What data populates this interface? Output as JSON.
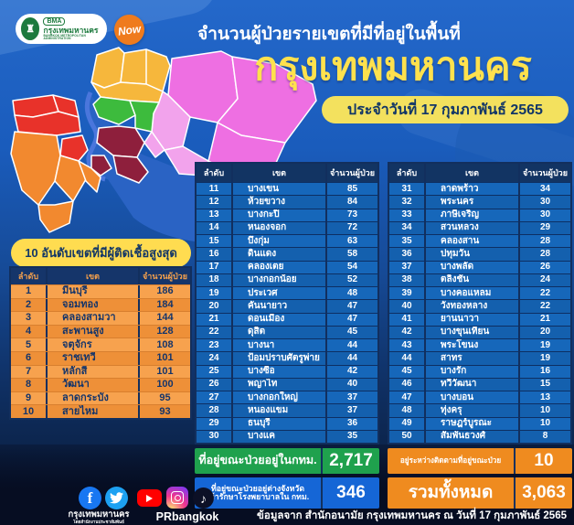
{
  "header": {
    "bma_logo": {
      "abbr": "BMA",
      "name": "กรุงเทพมหานคร",
      "sub": "BANGKOK METROPOLITAN ADMINISTRATION"
    },
    "now_logo": "Now",
    "title_line1": "จำนวนผู้ป่วยรายเขตที่มีที่อยู่ในพื้นที่",
    "title_line2": "กรุงเทพมหานคร",
    "date_badge": "ประจำวันที่ 17 กุมภาพันธ์ 2565"
  },
  "chart_data": {
    "type": "table",
    "title": "จำนวนผู้ป่วยรายเขตที่มีที่อยู่ในพื้นที่กรุงเทพมหานคร ประจำวันที่ 17 กุมภาพันธ์ 2565",
    "top10": {
      "title": "10 อันดับเขตที่มีผู้ติดเชื้อสูงสุด",
      "headers": [
        "ลำดับ",
        "เขต",
        "จำนวนผู้ป่วย"
      ],
      "rows": [
        [
          1,
          "มีนบุรี",
          "186"
        ],
        [
          2,
          "จอมทอง",
          "184"
        ],
        [
          3,
          "คลองสามวา",
          "144"
        ],
        [
          4,
          "สะพานสูง",
          "128"
        ],
        [
          5,
          "จตุจักร",
          "108"
        ],
        [
          6,
          "ราชเทวี",
          "101"
        ],
        [
          7,
          "หลักสี่",
          "101"
        ],
        [
          8,
          "วัฒนา",
          "100"
        ],
        [
          9,
          "ลาดกระบัง",
          "95"
        ],
        [
          10,
          "สายไหม",
          "93"
        ]
      ]
    },
    "ranks_11_30": {
      "headers": [
        "ลำดับ",
        "เขต",
        "จำนวนผู้ป่วย"
      ],
      "rows": [
        [
          11,
          "บางเขน",
          "85"
        ],
        [
          12,
          "ห้วยขวาง",
          "84"
        ],
        [
          13,
          "บางกะปิ",
          "73"
        ],
        [
          14,
          "หนองจอก",
          "72"
        ],
        [
          15,
          "บึงกุ่ม",
          "63"
        ],
        [
          16,
          "ดินแดง",
          "58"
        ],
        [
          17,
          "คลองเตย",
          "54"
        ],
        [
          18,
          "บางกอกน้อย",
          "52"
        ],
        [
          19,
          "ประเวศ",
          "48"
        ],
        [
          20,
          "คันนายาว",
          "47"
        ],
        [
          21,
          "ดอนเมือง",
          "47"
        ],
        [
          22,
          "ดุสิต",
          "45"
        ],
        [
          23,
          "บางนา",
          "44"
        ],
        [
          24,
          "ป้อมปราบศัตรูพ่าย",
          "44"
        ],
        [
          25,
          "บางซื่อ",
          "42"
        ],
        [
          26,
          "พญาไท",
          "40"
        ],
        [
          27,
          "บางกอกใหญ่",
          "37"
        ],
        [
          28,
          "หนองแขม",
          "37"
        ],
        [
          29,
          "ธนบุรี",
          "36"
        ],
        [
          30,
          "บางแค",
          "35"
        ]
      ]
    },
    "ranks_31_50": {
      "headers": [
        "ลำดับ",
        "เขต",
        "จำนวนผู้ป่วย"
      ],
      "rows": [
        [
          31,
          "ลาดพร้าว",
          "34"
        ],
        [
          32,
          "พระนคร",
          "30"
        ],
        [
          33,
          "ภาษีเจริญ",
          "30"
        ],
        [
          34,
          "สวนหลวง",
          "29"
        ],
        [
          35,
          "คลองสาน",
          "28"
        ],
        [
          36,
          "ปทุมวัน",
          "28"
        ],
        [
          37,
          "บางพลัด",
          "26"
        ],
        [
          38,
          "ตลิ่งชัน",
          "24"
        ],
        [
          39,
          "บางคอแหลม",
          "22"
        ],
        [
          40,
          "วังทองหลาง",
          "22"
        ],
        [
          41,
          "ยานนาวา",
          "21"
        ],
        [
          42,
          "บางขุนเทียน",
          "20"
        ],
        [
          43,
          "พระโขนง",
          "19"
        ],
        [
          44,
          "สาทร",
          "19"
        ],
        [
          45,
          "บางรัก",
          "16"
        ],
        [
          46,
          "ทวีวัฒนา",
          "15"
        ],
        [
          47,
          "บางบอน",
          "13"
        ],
        [
          48,
          "ทุ่งครุ",
          "10"
        ],
        [
          49,
          "ราษฎร์บูรณะ",
          "10"
        ],
        [
          50,
          "สัมพันธวงศ์",
          "8"
        ]
      ]
    },
    "summary": {
      "in_bkk": {
        "label": "ที่อยู่ขณะป่วยอยู่ในกทม.",
        "value": "2,717"
      },
      "other_province": {
        "label_line1": "ที่อยู่ขณะป่วยอยู่ต่างจังหวัด",
        "label_line2": "เข้ารักษาโรงพยาบาลใน กทม.",
        "value": "346"
      },
      "tracking": {
        "label": "อยู่ระหว่างติดตามที่อยู่ขณะป่วย",
        "value": "10"
      },
      "total": {
        "label": "รวมทั้งหมด",
        "value": "3,063"
      }
    }
  },
  "footer": {
    "social_left_label": "กรุงเทพมหานคร",
    "social_left_sub": "โดยสำนักงานประชาสัมพันธ์",
    "social_right_label": "PRbangkok",
    "source": "ข้อมูลจาก สำนักอนามัย กรุงเทพมหานคร ณ วันที่ 17 กุมภาพันธ์ 2565"
  },
  "colors": {
    "background_blue": "#1a5cbc",
    "dark_navy": "#123463",
    "yellow": "#ffdc50",
    "orange_row": "#f7a24e",
    "blue_row": "#1667ba",
    "green_box": "#1fa14d",
    "blue_box": "#1566d6",
    "orange_box": "#ef8b1f",
    "map_yellow": "#f6b73c",
    "map_magenta": "#ee6fe2",
    "map_pink": "#f2a3ec",
    "map_red": "#e8322a",
    "map_orange": "#f2892f",
    "map_green": "#3dbb3d",
    "map_maroon": "#8e1f3c"
  }
}
